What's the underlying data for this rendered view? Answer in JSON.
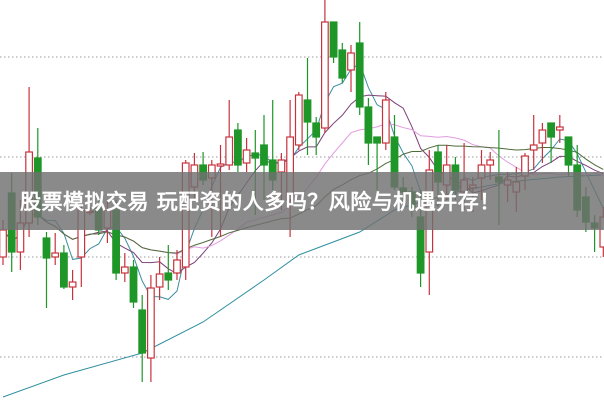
{
  "banner": {
    "title": "股票模拟交易 玩配资的人多吗？风险与机遇并存！"
  },
  "chart_data": {
    "type": "candlestick",
    "title": "",
    "xlabel": "",
    "ylabel": "",
    "ylim": [
      5.6,
      45.7
    ],
    "grid": {
      "on": true,
      "style": "dotted",
      "levels": [
        10,
        20,
        30,
        40
      ]
    },
    "colors": {
      "up": "#c8323c",
      "down": "#1e9628",
      "grid": "#9a9a9a",
      "ma5": "#3a8ea0",
      "ma10": "#7a3f78",
      "ma20": "#e39be0",
      "ma30": "#4f6b3a",
      "long_ma": "#2f8fa0"
    },
    "fields": [
      "open",
      "close",
      "high",
      "low"
    ],
    "candles": [
      [
        20.0,
        22.7,
        23.7,
        19.2
      ],
      [
        26.4,
        20.5,
        28.4,
        18.5
      ],
      [
        20.5,
        23.4,
        25.7,
        18.7
      ],
      [
        23.4,
        30.5,
        37.0,
        22.0
      ],
      [
        29.9,
        24.0,
        32.9,
        23.2
      ],
      [
        21.9,
        19.9,
        22.5,
        14.9
      ],
      [
        20.0,
        20.4,
        22.4,
        19.2
      ],
      [
        20.4,
        17.0,
        21.2,
        16.8
      ],
      [
        17.0,
        17.5,
        18.7,
        15.7
      ],
      [
        20.0,
        24.7,
        26.0,
        17.0
      ],
      [
        24.5,
        24.6,
        25.0,
        24.2
      ],
      [
        24.9,
        22.7,
        25.7,
        22.2
      ],
      [
        22.9,
        24.7,
        25.5,
        21.4
      ],
      [
        24.7,
        18.4,
        25.7,
        17.7
      ],
      [
        18.4,
        19.0,
        20.4,
        17.5
      ],
      [
        19.0,
        15.5,
        19.7,
        14.9
      ],
      [
        14.7,
        10.4,
        16.2,
        7.5
      ],
      [
        9.9,
        16.9,
        18.2,
        7.5
      ],
      [
        17.0,
        18.3,
        20.0,
        15.7
      ],
      [
        18.4,
        17.7,
        21.2,
        16.7
      ],
      [
        18.4,
        19.7,
        20.7,
        17.7
      ],
      [
        19.0,
        29.4,
        29.7,
        17.7
      ],
      [
        27.0,
        29.2,
        30.4,
        25.7
      ],
      [
        29.2,
        27.7,
        30.5,
        27.2
      ],
      [
        27.9,
        29.2,
        29.7,
        22.0
      ],
      [
        29.1,
        29.3,
        31.2,
        22.0
      ],
      [
        29.2,
        32.0,
        35.7,
        28.7
      ],
      [
        32.7,
        29.2,
        33.4,
        28.5
      ],
      [
        29.4,
        30.7,
        31.9,
        28.5
      ],
      [
        30.4,
        29.9,
        32.7,
        24.2
      ],
      [
        31.2,
        29.2,
        34.2,
        25.7
      ],
      [
        29.7,
        27.7,
        35.7,
        26.7
      ],
      [
        28.5,
        29.7,
        30.4,
        24.7
      ],
      [
        25.7,
        32.0,
        35.7,
        22.0
      ],
      [
        31.2,
        36.2,
        36.5,
        30.7
      ],
      [
        35.7,
        33.5,
        39.9,
        30.2
      ],
      [
        33.4,
        32.0,
        34.0,
        30.2
      ],
      [
        32.9,
        43.5,
        45.7,
        32.4
      ],
      [
        43.5,
        40.0,
        43.5,
        39.4
      ],
      [
        40.7,
        37.9,
        41.4,
        37.4
      ],
      [
        38.7,
        40.4,
        41.2,
        36.5
      ],
      [
        41.4,
        35.0,
        43.5,
        34.2
      ],
      [
        35.0,
        31.4,
        35.9,
        29.2
      ],
      [
        32.0,
        31.4,
        32.0,
        26.7
      ],
      [
        31.4,
        35.7,
        36.5,
        30.7
      ],
      [
        32.0,
        27.0,
        34.2,
        26.7
      ],
      [
        26.9,
        26.5,
        28.0,
        25.5
      ],
      [
        26.5,
        25.0,
        27.0,
        24.0
      ],
      [
        24.0,
        18.4,
        26.7,
        17.0
      ],
      [
        20.5,
        28.7,
        30.7,
        16.2
      ],
      [
        30.5,
        27.5,
        31.2,
        25.0
      ],
      [
        27.2,
        29.2,
        31.2,
        25.7
      ],
      [
        29.2,
        26.7,
        30.0,
        25.7
      ],
      [
        26.5,
        27.7,
        31.4,
        24.7
      ],
      [
        26.9,
        27.2,
        28.0,
        24.5
      ],
      [
        27.9,
        29.2,
        30.7,
        25.7
      ],
      [
        29.2,
        29.7,
        30.5,
        27.7
      ],
      [
        28.0,
        27.5,
        32.7,
        23.2
      ],
      [
        27.2,
        27.7,
        28.5,
        25.5
      ],
      [
        26.5,
        27.5,
        29.0,
        24.5
      ],
      [
        28.1,
        30.1,
        30.4,
        26.7
      ],
      [
        30.7,
        31.2,
        34.2,
        28.7
      ],
      [
        31.4,
        32.7,
        33.4,
        29.4
      ],
      [
        33.4,
        32.0,
        33.4,
        29.4
      ],
      [
        32.7,
        33.0,
        34.2,
        31.4
      ],
      [
        32.0,
        29.2,
        32.0,
        28.0
      ],
      [
        29.2,
        24.7,
        31.2,
        24.0
      ],
      [
        26.0,
        23.5,
        27.0,
        22.5
      ],
      [
        23.4,
        22.9,
        24.2,
        20.5
      ],
      [
        21.0,
        24.0,
        25.0,
        20.0
      ]
    ],
    "moving_averages": [
      5,
      10,
      20,
      30
    ],
    "long_ma": [
      [
        0,
        6.0
      ],
      [
        7,
        8.2
      ],
      [
        16,
        10.4
      ],
      [
        23,
        13.5
      ],
      [
        30,
        17.7
      ],
      [
        34,
        20.2
      ],
      [
        41,
        22.5
      ],
      [
        45,
        24.7
      ],
      [
        52,
        26.5
      ],
      [
        58,
        27.5
      ],
      [
        64,
        28.0
      ],
      [
        69,
        28.2
      ]
    ]
  }
}
